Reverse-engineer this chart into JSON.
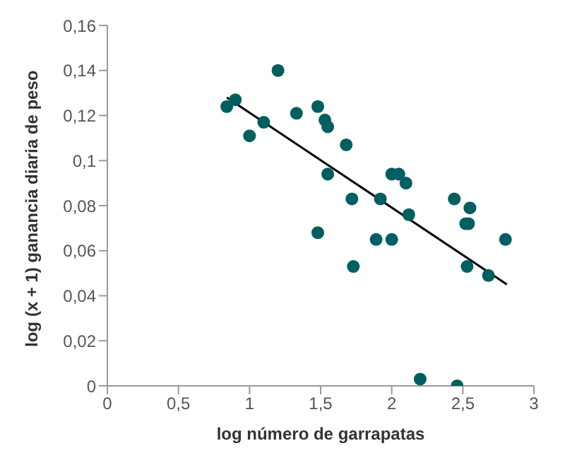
{
  "chart_data": {
    "type": "scatter",
    "xlabel": "log número de garrapatas",
    "ylabel": "log (x + 1) ganancia diaria de peso",
    "xlim": [
      0,
      3
    ],
    "xticks": [
      0,
      {
        "value": 0.5,
        "label": "0,5"
      },
      1,
      {
        "value": 1.5,
        "label": "1,5"
      },
      2,
      {
        "value": 2.5,
        "label": "2,5"
      },
      3
    ],
    "ylim": [
      0,
      0.16
    ],
    "yticks": [
      0,
      {
        "value": 0.02,
        "label": "0,02"
      },
      {
        "value": 0.04,
        "label": "0,04"
      },
      {
        "value": 0.06,
        "label": "0,06"
      },
      {
        "value": 0.08,
        "label": "0,08"
      },
      {
        "value": 0.1,
        "label": "0,1"
      },
      {
        "value": 0.12,
        "label": "0,12"
      },
      {
        "value": 0.14,
        "label": "0,14"
      },
      {
        "value": 0.16,
        "label": "0,16"
      }
    ],
    "grid": false,
    "legend": false,
    "series": [
      {
        "marker": "circle",
        "color": "#005f5f",
        "x": [
          0.84,
          0.9,
          1.0,
          1.1,
          1.2,
          1.33,
          1.48,
          1.48,
          1.53,
          1.55,
          1.55,
          1.68,
          1.72,
          1.73,
          1.89,
          1.92,
          2.0,
          2.0,
          2.05,
          2.1,
          2.12,
          2.2,
          2.44,
          2.46,
          2.52,
          2.54,
          2.53,
          2.55,
          2.68,
          2.8
        ],
        "values": [
          0.124,
          0.127,
          0.111,
          0.117,
          0.14,
          0.121,
          0.124,
          0.068,
          0.118,
          0.115,
          0.094,
          0.107,
          0.083,
          0.053,
          0.065,
          0.083,
          0.094,
          0.065,
          0.094,
          0.09,
          0.076,
          0.003,
          0.083,
          0,
          0.072,
          0.072,
          0.053,
          0.079,
          0.049,
          0.065
        ]
      },
      {
        "type": "line",
        "marker": "none",
        "color": "#000000",
        "x": [
          0.84,
          2.81
        ],
        "values": [
          0.128,
          0.045
        ]
      }
    ]
  }
}
